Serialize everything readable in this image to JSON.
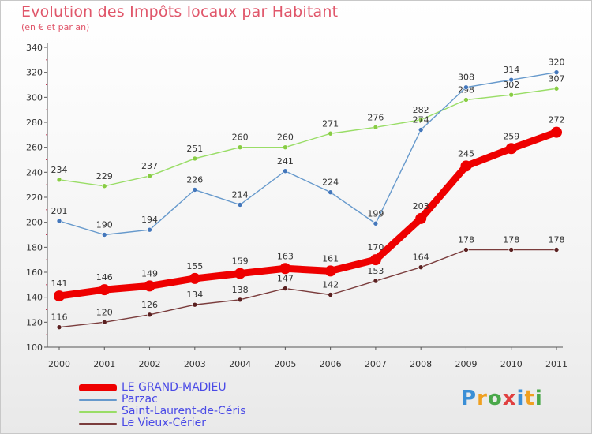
{
  "header": {
    "title": "Evolution des Impôts locaux par Habitant",
    "subtitle": "(en € et par an)"
  },
  "logo": {
    "text": "Proxiti",
    "letters": [
      "P",
      "r",
      "o",
      "x",
      "i",
      "t",
      "i"
    ]
  },
  "chart_data": {
    "type": "line",
    "title": "Evolution des Impôts locaux par Habitant",
    "subtitle": "(en € et par an)",
    "xlabel": "",
    "ylabel": "",
    "ylim": [
      100,
      340
    ],
    "yticks": [
      100,
      120,
      140,
      160,
      180,
      200,
      220,
      240,
      260,
      280,
      300,
      320,
      340
    ],
    "grid": false,
    "legend_position": "bottom-left",
    "categories": [
      "2000",
      "2001",
      "2002",
      "2003",
      "2004",
      "2005",
      "2006",
      "2007",
      "2008",
      "2009",
      "2010",
      "2011"
    ],
    "series": [
      {
        "name": "Saint-Laurent-de-Céris",
        "color": "#99dd66",
        "marker_color": "#88cc44",
        "emphasis": false,
        "values": [
          234,
          229,
          237,
          251,
          260,
          260,
          271,
          276,
          282,
          298,
          302,
          307
        ]
      },
      {
        "name": "Parzac",
        "color": "#6699cc",
        "marker_color": "#4477bb",
        "emphasis": false,
        "values": [
          201,
          190,
          194,
          226,
          214,
          241,
          224,
          199,
          274,
          308,
          314,
          320
        ]
      },
      {
        "name": "Le Vieux-Cérier",
        "color": "#7a3c3c",
        "marker_color": "#5a2020",
        "emphasis": false,
        "values": [
          116,
          120,
          126,
          134,
          138,
          147,
          142,
          153,
          164,
          178,
          178,
          178
        ]
      },
      {
        "name": "LE GRAND-MADIEU",
        "color": "#ee0000",
        "marker_color": "#ee0000",
        "emphasis": true,
        "values": [
          141,
          146,
          149,
          155,
          159,
          163,
          161,
          170,
          203,
          245,
          259,
          272
        ]
      }
    ],
    "legend_order": [
      "LE GRAND-MADIEU",
      "Parzac",
      "Saint-Laurent-de-Céris",
      "Le Vieux-Cérier"
    ]
  }
}
